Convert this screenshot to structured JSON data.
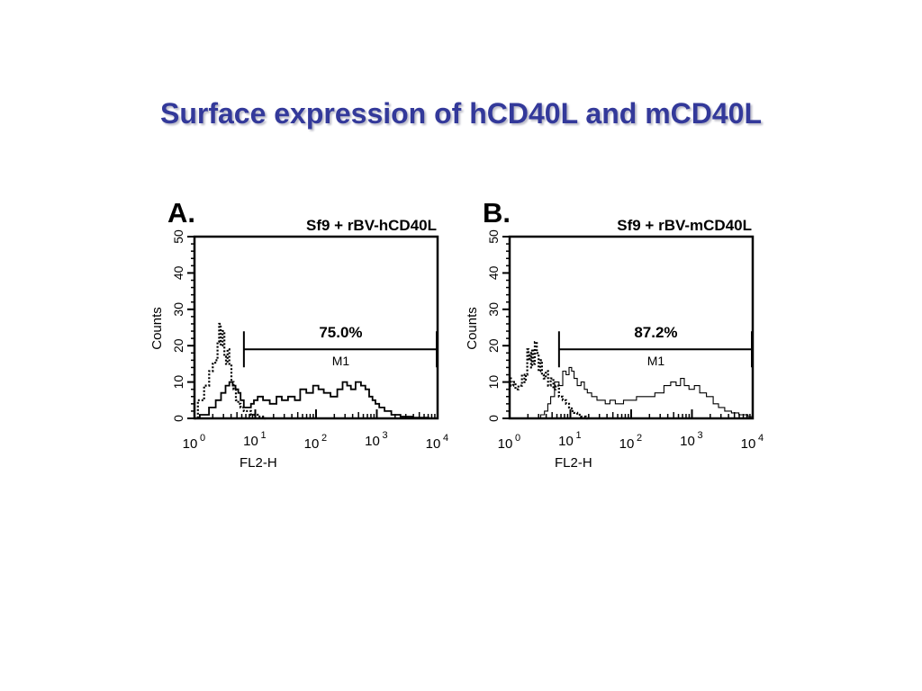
{
  "slide": {
    "title": "Surface expression of hCD40L and mCD40L"
  },
  "chart_data": [
    {
      "type": "line",
      "panel_label": "A.",
      "title": "Sf9 + rBV-hCD40L",
      "xlabel": "FL2-H",
      "ylabel": "Counts",
      "x_scale": "log",
      "xlim": [
        1,
        10000
      ],
      "ylim": [
        0,
        50
      ],
      "yticks": [
        0,
        10,
        20,
        30,
        40,
        50
      ],
      "xticks": [
        {
          "base": "10",
          "exp": "0"
        },
        {
          "base": "10",
          "exp": "1"
        },
        {
          "base": "10",
          "exp": "2"
        },
        {
          "base": "10",
          "exp": "3"
        },
        {
          "base": "10",
          "exp": "4"
        }
      ],
      "gate": {
        "name": "M1",
        "percent": "75.0%",
        "x_start": 6.5,
        "x_end": 10000,
        "y": 19
      },
      "series": [
        {
          "style": "dotted",
          "x": [
            1,
            1.3,
            1.6,
            1.9,
            2.1,
            2.3,
            2.5,
            2.6,
            2.8,
            3.0,
            3.2,
            3.4,
            3.6,
            3.9,
            4.2,
            4.6,
            5.0,
            5.5,
            6.0,
            7.0,
            8.0,
            9.0,
            10.0,
            12.0,
            15.0
          ],
          "y": [
            0,
            5,
            9,
            13,
            15,
            16,
            21,
            26,
            20,
            24,
            17,
            15,
            19,
            15,
            10,
            8,
            5,
            4,
            3,
            2,
            2,
            1,
            1,
            0.5,
            0
          ]
        },
        {
          "style": "solid",
          "x": [
            1,
            1.5,
            2.0,
            2.5,
            3.0,
            3.5,
            4.0,
            4.5,
            5.0,
            5.5,
            6.0,
            7.0,
            8.0,
            9.0,
            10.0,
            12.0,
            15.0,
            20.0,
            25.0,
            30.0,
            40.0,
            50.0,
            60.0,
            80.0,
            100.0,
            120.0,
            150.0,
            200.0,
            250.0,
            300.0,
            350.0,
            400.0,
            500.0,
            600.0,
            700.0,
            800.0,
            900.0,
            1000.0,
            1200.0,
            1500.0,
            2000.0,
            3000.0,
            5000.0,
            10000.0
          ],
          "y": [
            0,
            1,
            3,
            5,
            7,
            9,
            10,
            9,
            8,
            7,
            5,
            3,
            3,
            4,
            5,
            6,
            5,
            4,
            6,
            5,
            6,
            5,
            8,
            7,
            9,
            8,
            7,
            6,
            8,
            10,
            9,
            8,
            10,
            9,
            8,
            6,
            5,
            4,
            3,
            2,
            1,
            0.5,
            0.2,
            0
          ]
        }
      ]
    },
    {
      "type": "line",
      "panel_label": "B.",
      "title": "Sf9 + rBV-mCD40L",
      "xlabel": "FL2-H",
      "ylabel": "Counts",
      "x_scale": "log",
      "xlim": [
        1,
        10000
      ],
      "ylim": [
        0,
        50
      ],
      "yticks": [
        0,
        10,
        20,
        30,
        40,
        50
      ],
      "xticks": [
        {
          "base": "10",
          "exp": "0"
        },
        {
          "base": "10",
          "exp": "1"
        },
        {
          "base": "10",
          "exp": "2"
        },
        {
          "base": "10",
          "exp": "3"
        },
        {
          "base": "10",
          "exp": "4"
        }
      ],
      "gate": {
        "name": "M1",
        "percent": "87.2%",
        "x_start": 6.5,
        "x_end": 10000,
        "y": 19
      },
      "series": [
        {
          "style": "dotted",
          "x": [
            1,
            1.1,
            1.2,
            1.3,
            1.5,
            1.7,
            1.8,
            1.9,
            2.0,
            2.1,
            2.2,
            2.3,
            2.4,
            2.5,
            2.7,
            2.9,
            3.1,
            3.3,
            3.5,
            3.8,
            4.1,
            4.5,
            5.0,
            5.5,
            6.0,
            7.0,
            8.0,
            9.0,
            10.0,
            11.0,
            12.0,
            14.0,
            16.0,
            20.0
          ],
          "y": [
            11,
            9,
            10,
            8,
            9,
            12,
            10,
            12,
            19,
            16,
            18,
            14,
            19,
            15,
            21,
            18,
            13,
            16,
            12,
            11,
            13,
            9,
            11,
            8,
            9,
            6,
            5,
            4,
            3,
            2,
            1.5,
            1,
            0.5,
            0
          ]
        },
        {
          "style": "solid",
          "x": [
            3.0,
            3.5,
            4.0,
            4.5,
            5.0,
            6.0,
            7.0,
            8.0,
            9.0,
            10.0,
            11.0,
            12.0,
            14.0,
            16.0,
            18.0,
            20.0,
            25.0,
            30.0,
            35.0,
            40.0,
            50.0,
            60.0,
            70.0,
            80.0,
            100.0,
            150.0,
            200.0,
            300.0,
            400.0,
            500.0,
            600.0,
            700.0,
            800.0,
            1000.0,
            1200.0,
            1500.0,
            2000.0,
            2500.0,
            3000.0,
            4000.0,
            5000.0,
            7000.0,
            10000.0
          ],
          "y": [
            0,
            1,
            2,
            4,
            6,
            10,
            9,
            13,
            12,
            14,
            13,
            11,
            9,
            10,
            8,
            7,
            6,
            5,
            5,
            4,
            5,
            4,
            4,
            5,
            5,
            6,
            6,
            7,
            9,
            10,
            9,
            11,
            9,
            8,
            9,
            7,
            6,
            4,
            3,
            2,
            1.5,
            1,
            0.5
          ]
        }
      ]
    }
  ]
}
